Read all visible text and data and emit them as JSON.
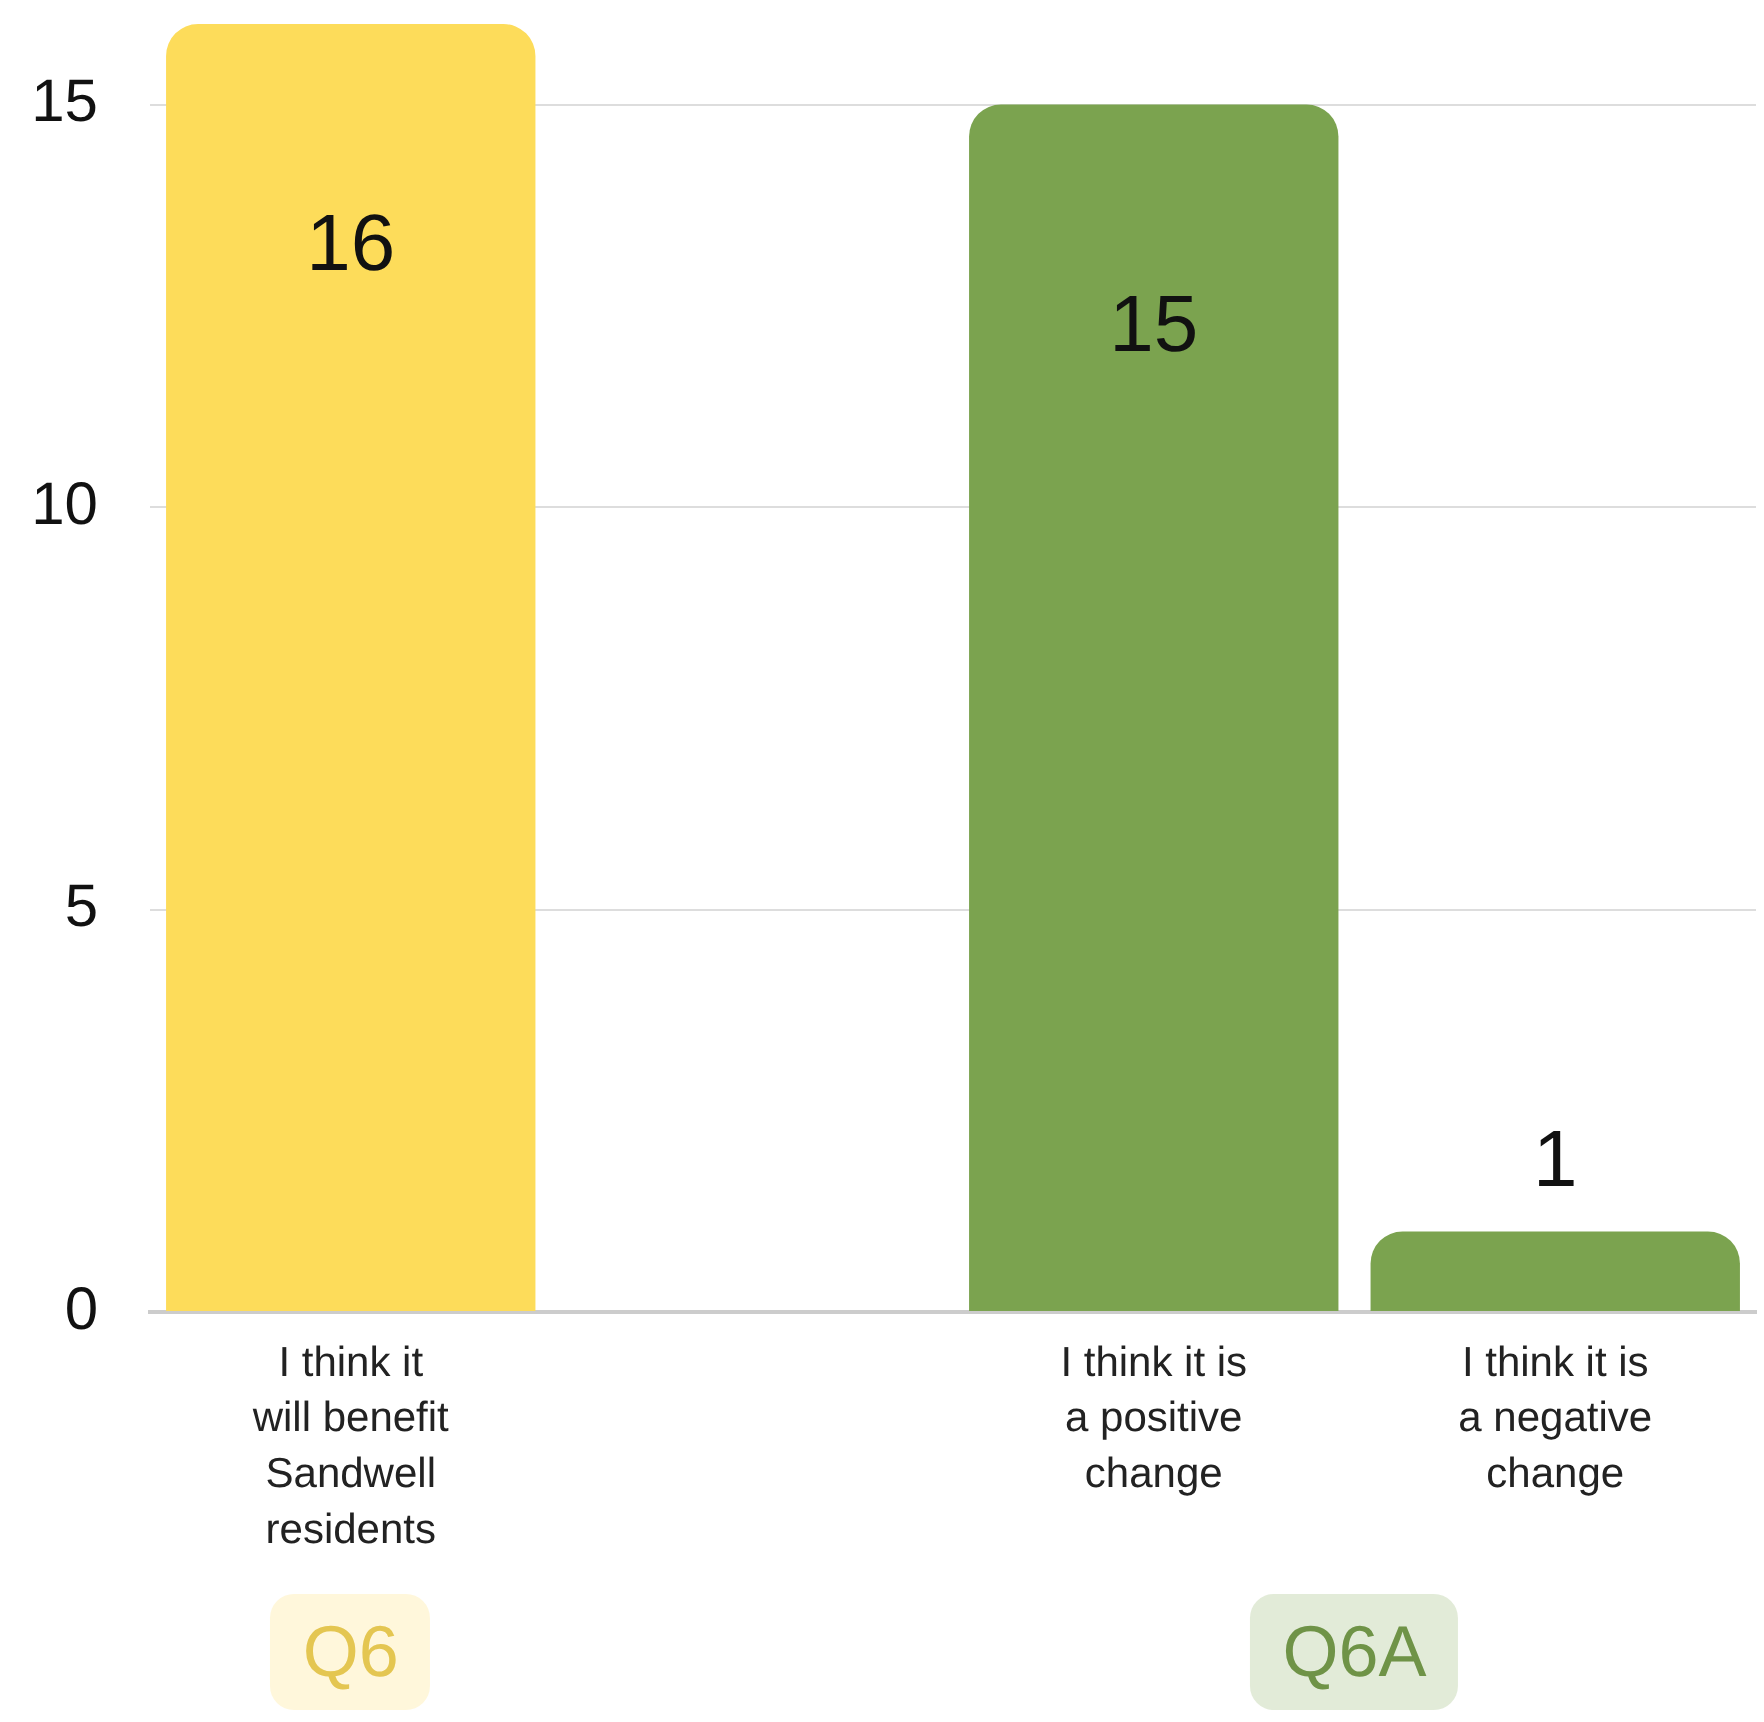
{
  "chart_data": {
    "type": "bar",
    "categories": [
      "I think it will benefit Sandwell residents",
      null,
      "I think it is a positive change",
      "I think it is a negative change"
    ],
    "values": [
      16,
      null,
      15,
      1
    ],
    "colors": [
      "#fddc5a",
      null,
      "#7ba34f",
      "#7ba34f"
    ],
    "ylim": [
      0,
      16
    ],
    "yticks": [
      0,
      5,
      10,
      15
    ],
    "grid": "y",
    "data_labels": true,
    "annotations": [
      "Q6",
      "Q6A"
    ]
  }
}
